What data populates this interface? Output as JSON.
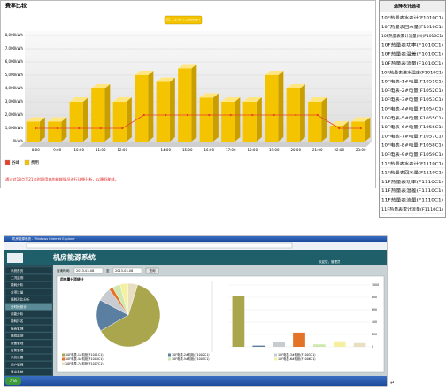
{
  "chart_data": {
    "type": "bar",
    "title": "费率比较",
    "categories": [
      "8:00",
      "9:00",
      "10:00",
      "11:00",
      "12:00",
      null,
      "14:00",
      "15:00",
      "16:00",
      "17:00",
      "18:00",
      "19:00",
      "20:00",
      "21:00",
      "22:00",
      "23:00"
    ],
    "series": [
      {
        "name": "谷峰",
        "type": "line",
        "color": "#e8402a",
        "values": [
          1000,
          1000,
          1000,
          1000,
          1000,
          2000,
          2000,
          2000,
          2000,
          2000,
          2000,
          2000,
          2000,
          2000,
          1000,
          1000
        ]
      },
      {
        "name": "费用",
        "type": "bar",
        "color": "#f5c400",
        "values": [
          1500,
          1500,
          3000,
          4000,
          3000,
          5000,
          4500,
          5500,
          3300,
          3000,
          3000,
          5000,
          4000,
          3000,
          1200,
          1500
        ]
      }
    ],
    "ylim": [
      0,
      8000
    ],
    "yticks": [
      {
        "value": 0,
        "label": "0kWh"
      },
      {
        "value": 1000,
        "label": "1,000kWh"
      },
      {
        "value": 2000,
        "label": "2,000kWh"
      },
      {
        "value": 3000,
        "label": "3,000kWh"
      },
      {
        "value": 4000,
        "label": "4,000kWh"
      },
      {
        "value": 5000,
        "label": "5,000kWh"
      },
      {
        "value": 6000,
        "label": "6,000kWh"
      },
      {
        "value": 7000,
        "label": "7,000kWh"
      },
      {
        "value": 8000,
        "label": "8,000kWh"
      }
    ],
    "grid": true,
    "tooltip": "日: 15:00 7,500kWh",
    "note": "通过对18点至21点时段用电的能耗情况进行详细分析，以降低能耗。"
  },
  "meter_list": {
    "title": "选择表计选项",
    "items": [
      "10F热量表水表计(F1010C1)",
      "10F热量表回水量(F1010C1)",
      "10F热量表累计流量(H)(F1010C1)",
      "10F热量表功率(F1010C1)",
      "10F热量表温差(F1010C1)",
      "10F热量表流量(F1010C1)",
      "10F热量表进水温度(F1010C1)",
      "10F电表-1#电量(F1051C1)",
      "10F电表-2#电量(F1052C1)",
      "10F电表-3#电量(F1053C1)",
      "10F电表-4#电量(F1054C1)",
      "10F电表-5#电量(F1055C1)",
      "10F电表-6#电量(F1056C1)",
      "10F电表-7#电量(F1057C1)",
      "10F电表-8#电量(F1058C1)",
      "10F电表-9#电量(F1059C1)",
      "11F热量表水表计(F1110C1)",
      "11F热量表回水量(F1110C1)",
      "11F热量表功率(F1110C1)",
      "11F热量表温差(F1110C1)",
      "11F热量表流量(F1110C1)",
      "11F热量表累计流量(F1110C1)"
    ]
  },
  "app_window": {
    "window_title": "机房能源系统 - Windows Internet Explorer",
    "header": "机房能源系统",
    "welcome": "欢迎您，管理员",
    "menu": [
      "系统首页",
      "工况监测",
      "能耗分析",
      "分项计量",
      "能耗对比分析",
      "分时段统计",
      "用能分析",
      "能耗排名",
      "报表管理",
      "能效监测",
      "设备管理",
      "告警管理",
      "系统设置",
      "用户管理",
      "退出系统"
    ],
    "query": {
      "label": "查询时间:",
      "start": "2013-03-08",
      "to": "至",
      "end": "2013-03-08",
      "button": "查询"
    },
    "panel_title": "用电量分项统计",
    "pie": {
      "type": "pie",
      "names": [
        "10F电表-1#机柜(F1001C1)",
        "10F电表-2#机柜(F1002C1)",
        "10F电表-3#机柜(F1003C1)",
        "10F电表-4#机柜(F1004C1)",
        "10F电表-5#机柜(F1005C1)",
        "10F电表-6#机柜(F1006C1)",
        "10F电表-7#机柜(F1007C1)"
      ],
      "colors": [
        "#a9a64e",
        "#5b7fa0",
        "#c8cbd0",
        "#e4732a",
        "#cfe8b0",
        "#f4f0a0",
        "#e8dfc0"
      ],
      "values": [
        62,
        16,
        7,
        2,
        4,
        4,
        5
      ]
    },
    "bars": {
      "type": "bar",
      "values": [
        820,
        20,
        80,
        230,
        40,
        90,
        60
      ],
      "ylim": [
        0,
        1000
      ],
      "yticks": [
        0,
        200,
        400,
        600,
        800,
        1000
      ]
    },
    "taskbar": "开始"
  }
}
